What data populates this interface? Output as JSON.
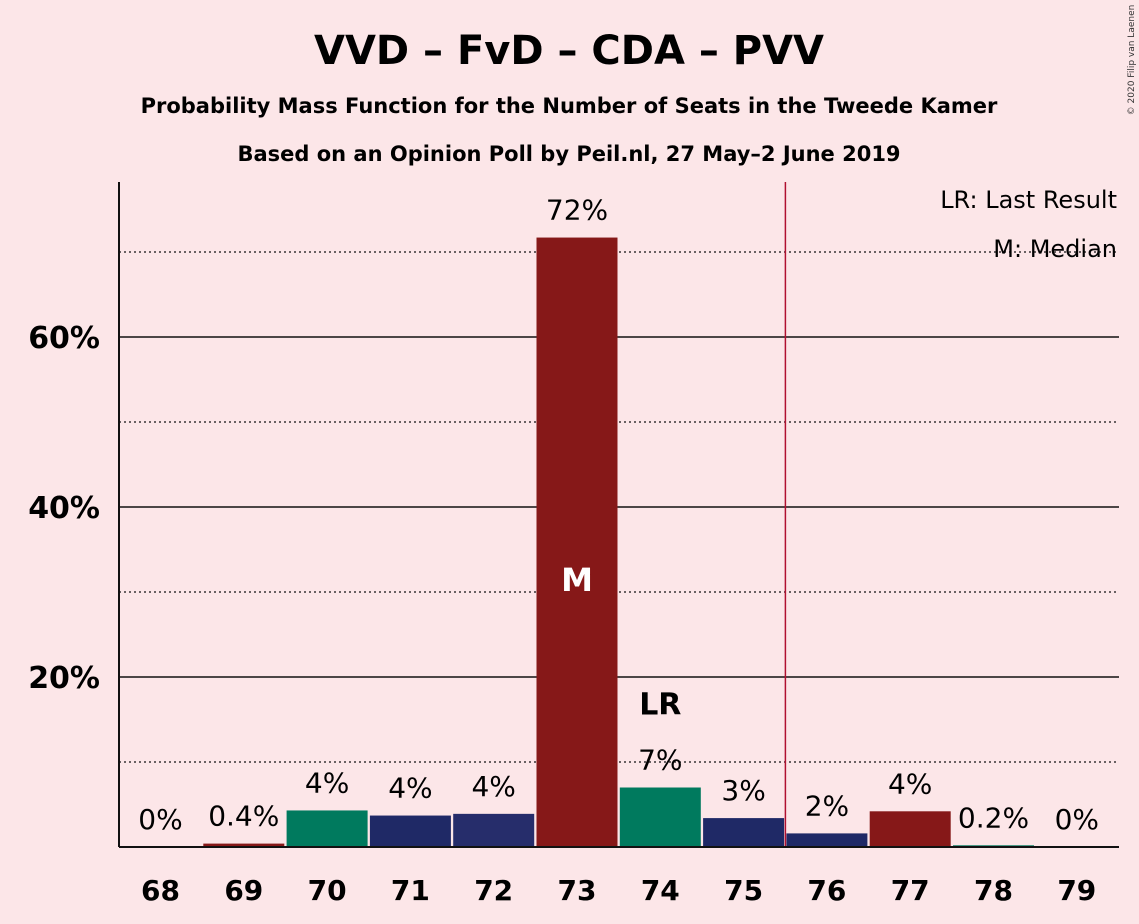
{
  "chart_data": {
    "type": "bar",
    "title": "VVD – FvD – CDA – PVV",
    "subtitle": "Probability Mass Function for the Number of Seats in the Tweede Kamer",
    "subtitle2": "Based on an Opinion Poll by Peil.nl, 27 May–2 June 2019",
    "copyright": "© 2020 Filip van Laenen",
    "categories": [
      "68",
      "69",
      "70",
      "71",
      "72",
      "73",
      "74",
      "75",
      "76",
      "77",
      "78",
      "79"
    ],
    "values": [
      0,
      0.4,
      4.3,
      3.7,
      3.9,
      71.7,
      7.0,
      3.4,
      1.6,
      4.2,
      0.2,
      0
    ],
    "value_labels": [
      "0%",
      "0.4%",
      "4%",
      "4%",
      "4%",
      "72%",
      "7%",
      "3%",
      "2%",
      "4%",
      "0.2%",
      "0%"
    ],
    "bar_colors": [
      "#1f2966",
      "#861818",
      "#007a5e",
      "#1f2966",
      "#262d6b",
      "#861818",
      "#007a5e",
      "#1f2966",
      "#1f2966",
      "#861818",
      "#007a5e",
      "#1f2966"
    ],
    "ylim": [
      0,
      78
    ],
    "yticks": [
      20,
      40,
      60
    ],
    "ytick_labels": [
      "20%",
      "40%",
      "60%"
    ],
    "minor_gridlines": [
      10,
      30,
      50,
      70
    ],
    "majority_line_after": "75",
    "majority_line_color": "#b01030",
    "median_category": "73",
    "median_label": "M",
    "last_result_category": "74",
    "last_result_label": "LR",
    "legend": [
      "LR: Last Result",
      "M: Median"
    ],
    "legend_position": "top-right"
  }
}
